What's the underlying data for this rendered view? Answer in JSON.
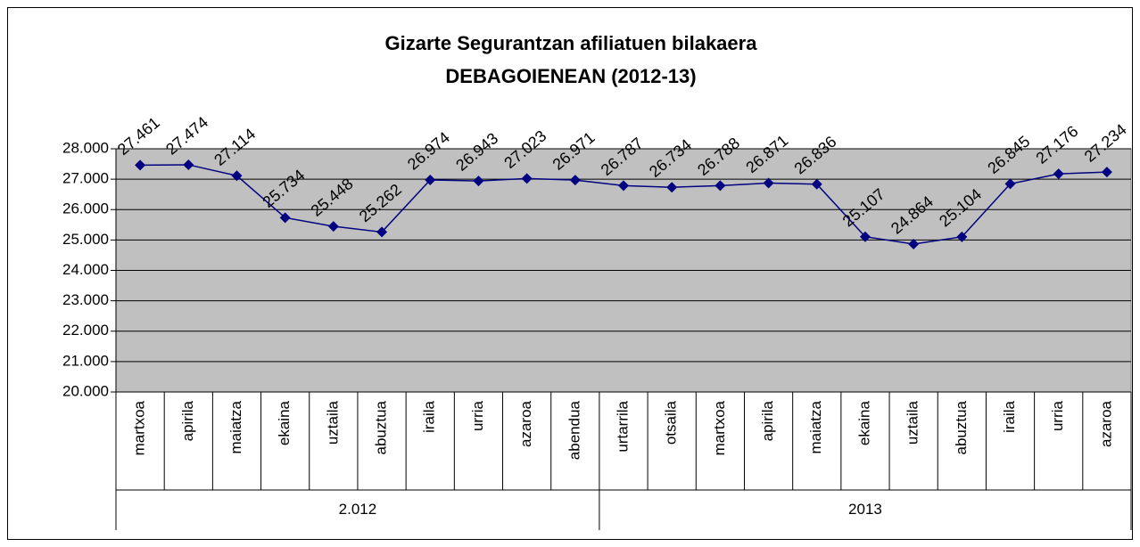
{
  "chart_data": {
    "type": "line",
    "title": [
      "Gizarte Segurantzan afiliatuen bilakaera",
      "DEBAGOIENEAN (2012-13)"
    ],
    "category_groups": [
      {
        "name": "2.012",
        "categories": [
          "martxoa",
          "apirila",
          "maiatza",
          "ekaina",
          "uztaila",
          "abuztua",
          "iraila",
          "urria",
          "azaroa",
          "abendua"
        ]
      },
      {
        "name": "2013",
        "categories": [
          "urtarrila",
          "otsaila",
          "martxoa",
          "apirila",
          "maiatza",
          "ekaina",
          "uztaila",
          "abuztua",
          "iraila",
          "urria",
          "azaroa"
        ]
      }
    ],
    "values": [
      27461,
      27474,
      27114,
      25734,
      25448,
      25262,
      26974,
      26943,
      27023,
      26971,
      26787,
      26734,
      26788,
      26871,
      26836,
      25107,
      24864,
      25104,
      26845,
      27176,
      27234
    ],
    "value_labels": [
      "27.461",
      "27.474",
      "27.114",
      "25.734",
      "25.448",
      "25.262",
      "26.974",
      "26.943",
      "27.023",
      "26.971",
      "26.787",
      "26.734",
      "26.788",
      "26.871",
      "26.836",
      "25.107",
      "24.864",
      "25.104",
      "26.845",
      "27.176",
      "27.234"
    ],
    "color": "#000080",
    "plot_background": "#c0c0c0",
    "ylim": [
      20000,
      28000
    ],
    "yticks": [
      {
        "value": 20000,
        "label": "20.000"
      },
      {
        "value": 21000,
        "label": "21.000"
      },
      {
        "value": 22000,
        "label": "22.000"
      },
      {
        "value": 23000,
        "label": "23.000"
      },
      {
        "value": 24000,
        "label": "24.000"
      },
      {
        "value": 25000,
        "label": "25.000"
      },
      {
        "value": 26000,
        "label": "26.000"
      },
      {
        "value": 27000,
        "label": "27.000"
      },
      {
        "value": 28000,
        "label": "28.000"
      }
    ],
    "grid": true
  }
}
